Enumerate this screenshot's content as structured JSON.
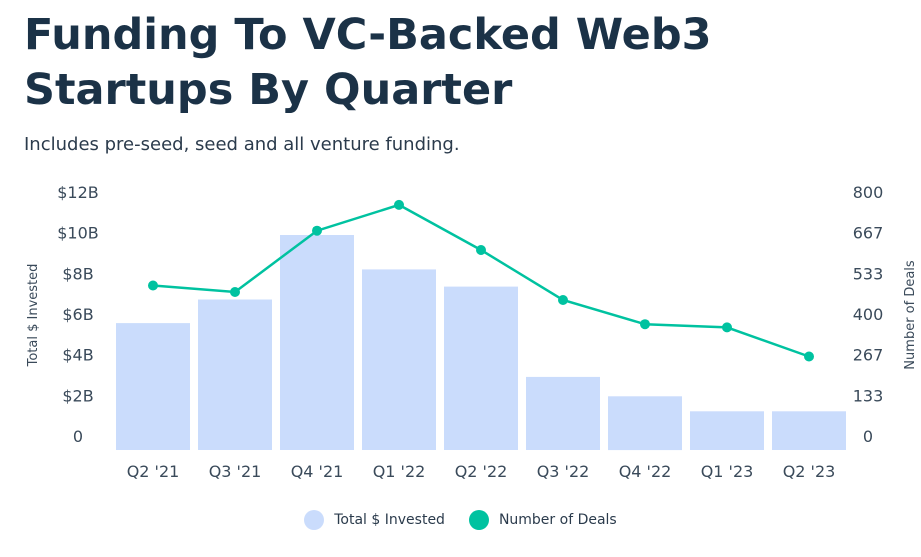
{
  "title": "Funding To VC-Backed Web3 Startups By Quarter",
  "subtitle": "Includes pre-seed, seed and all venture funding.",
  "chart_data": {
    "type": "bar",
    "categories": [
      "Q2 '21",
      "Q3 '21",
      "Q4 '21",
      "Q1 '22",
      "Q2 '22",
      "Q3 '22",
      "Q4 '22",
      "Q1 '23",
      "Q2 '23"
    ],
    "series": [
      {
        "name": "Total $ Invested",
        "type": "bar",
        "axis": "left",
        "color": "#cadcfc",
        "values": [
          5.9,
          7.0,
          10.0,
          8.4,
          7.6,
          3.4,
          2.5,
          1.8,
          1.8
        ]
      },
      {
        "name": "Number of Deals",
        "type": "line",
        "axis": "right",
        "color": "#00c2a0",
        "values": [
          510,
          490,
          680,
          760,
          620,
          465,
          390,
          380,
          290
        ]
      }
    ],
    "ylabel_left": "Total $ Invested",
    "ylabel_right": "Number of Deals",
    "y_left_ticks": [
      "$12B",
      "$10B",
      "$8B",
      "$6B",
      "$4B",
      "$2B",
      "0"
    ],
    "y_right_ticks": [
      "800",
      "667",
      "533",
      "400",
      "267",
      "133",
      "0"
    ],
    "ylim_left": [
      0,
      12
    ],
    "ylim_right": [
      0,
      800
    ],
    "grid": false,
    "legend_position": "bottom-center"
  }
}
